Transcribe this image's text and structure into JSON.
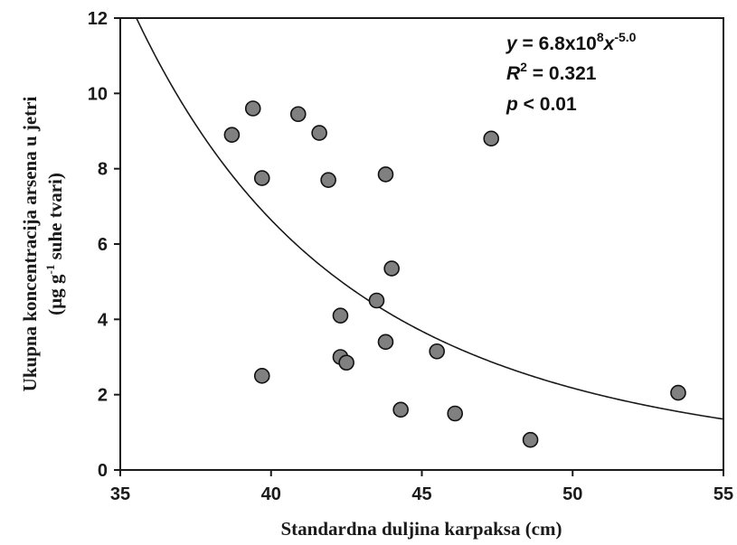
{
  "chart_data": {
    "type": "scatter",
    "xlabel": "Standardna duljina karpaksa (cm)",
    "ylabel_line1": "Ukupna koncentracija arsena u jetri",
    "ylabel_line2_prefix": "(µg g",
    "ylabel_line2_sup": "-1",
    "ylabel_line2_suffix": " suhe tvari)",
    "xlim": [
      35,
      55
    ],
    "ylim": [
      0,
      12
    ],
    "xticks": [
      "35",
      "40",
      "45",
      "50",
      "55"
    ],
    "yticks": [
      "0",
      "2",
      "4",
      "6",
      "8",
      "10",
      "12"
    ],
    "grid": false,
    "marker_color": "#808080",
    "points": [
      {
        "x": 38.7,
        "y": 8.9
      },
      {
        "x": 39.4,
        "y": 9.6
      },
      {
        "x": 39.7,
        "y": 7.75
      },
      {
        "x": 39.7,
        "y": 2.5
      },
      {
        "x": 40.9,
        "y": 9.45
      },
      {
        "x": 41.6,
        "y": 8.95
      },
      {
        "x": 41.9,
        "y": 7.7
      },
      {
        "x": 42.3,
        "y": 4.1
      },
      {
        "x": 42.3,
        "y": 3.0
      },
      {
        "x": 42.5,
        "y": 2.85
      },
      {
        "x": 43.5,
        "y": 4.5
      },
      {
        "x": 43.8,
        "y": 7.85
      },
      {
        "x": 43.8,
        "y": 3.4
      },
      {
        "x": 44.0,
        "y": 5.35
      },
      {
        "x": 44.3,
        "y": 1.6
      },
      {
        "x": 45.5,
        "y": 3.15
      },
      {
        "x": 46.1,
        "y": 1.5
      },
      {
        "x": 47.3,
        "y": 8.8
      },
      {
        "x": 48.6,
        "y": 0.8
      },
      {
        "x": 53.5,
        "y": 2.05
      }
    ],
    "fit": {
      "a": 680000000,
      "b": -5.0
    },
    "annotation": {
      "y_eq_prefix": "y",
      "y_eq_mid": " = 6.8x10",
      "y_eq_sup1": "8",
      "y_eq_x": "x",
      "y_eq_sup2": "-5.0",
      "r2_r": "R",
      "r2_sup": "2",
      "r2_rest": " = 0.321",
      "p_p": "p",
      "p_rest": " < 0.01"
    }
  }
}
